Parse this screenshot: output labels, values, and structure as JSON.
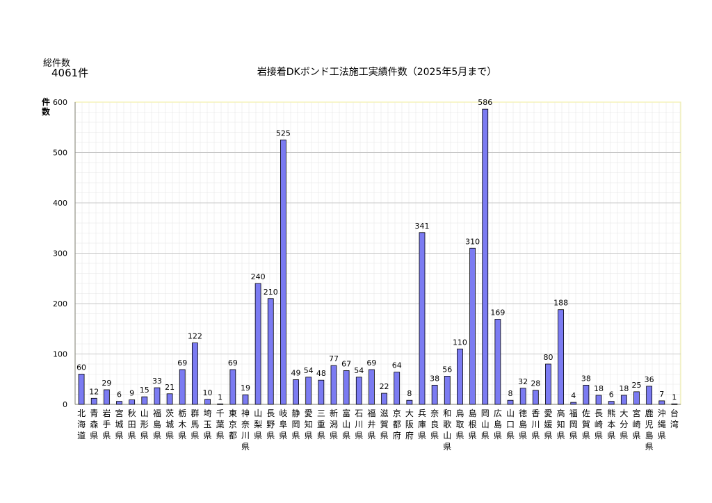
{
  "total": {
    "label": "総件数",
    "value": "4061件"
  },
  "chart_data": {
    "type": "bar",
    "title": "岩接着DKボンド工法施工実績件数（2025年5月まで）",
    "ylabel": "件数",
    "xlabel": "",
    "ylim": [
      0,
      600
    ],
    "yticks": [
      0,
      100,
      200,
      300,
      400,
      500,
      600
    ],
    "grid": true,
    "categories": [
      "北海道",
      "青森県",
      "岩手県",
      "宮城県",
      "秋田県",
      "山形県",
      "福島県",
      "茨城県",
      "栃木県",
      "群馬県",
      "埼玉県",
      "千葉県",
      "東京都",
      "神奈川県",
      "山梨県",
      "長野県",
      "岐阜県",
      "静岡県",
      "愛知県",
      "三重県",
      "新潟県",
      "富山県",
      "石川県",
      "福井県",
      "滋賀県",
      "京都府",
      "大阪府",
      "兵庫県",
      "奈良県",
      "和歌山県",
      "鳥取県",
      "島根県",
      "岡山県",
      "広島県",
      "山口県",
      "徳島県",
      "香川県",
      "愛媛県",
      "高知県",
      "福岡県",
      "佐賀県",
      "長崎県",
      "熊本県",
      "大分県",
      "宮崎県",
      "鹿児島県",
      "沖縄県",
      "台湾"
    ],
    "values": [
      60,
      12,
      29,
      6,
      9,
      15,
      33,
      21,
      69,
      122,
      10,
      1,
      69,
      19,
      240,
      210,
      525,
      49,
      54,
      48,
      77,
      67,
      54,
      69,
      22,
      64,
      8,
      341,
      38,
      56,
      110,
      310,
      586,
      169,
      8,
      32,
      28,
      80,
      188,
      4,
      38,
      18,
      6,
      18,
      25,
      36,
      7,
      1
    ],
    "colors": {
      "bar": "#7b7bf2",
      "bar_stroke": "#000000",
      "grid": "#c8c8c8",
      "minor_grid": "#e6e6e6",
      "plot_border": "#f2f0a6"
    }
  }
}
